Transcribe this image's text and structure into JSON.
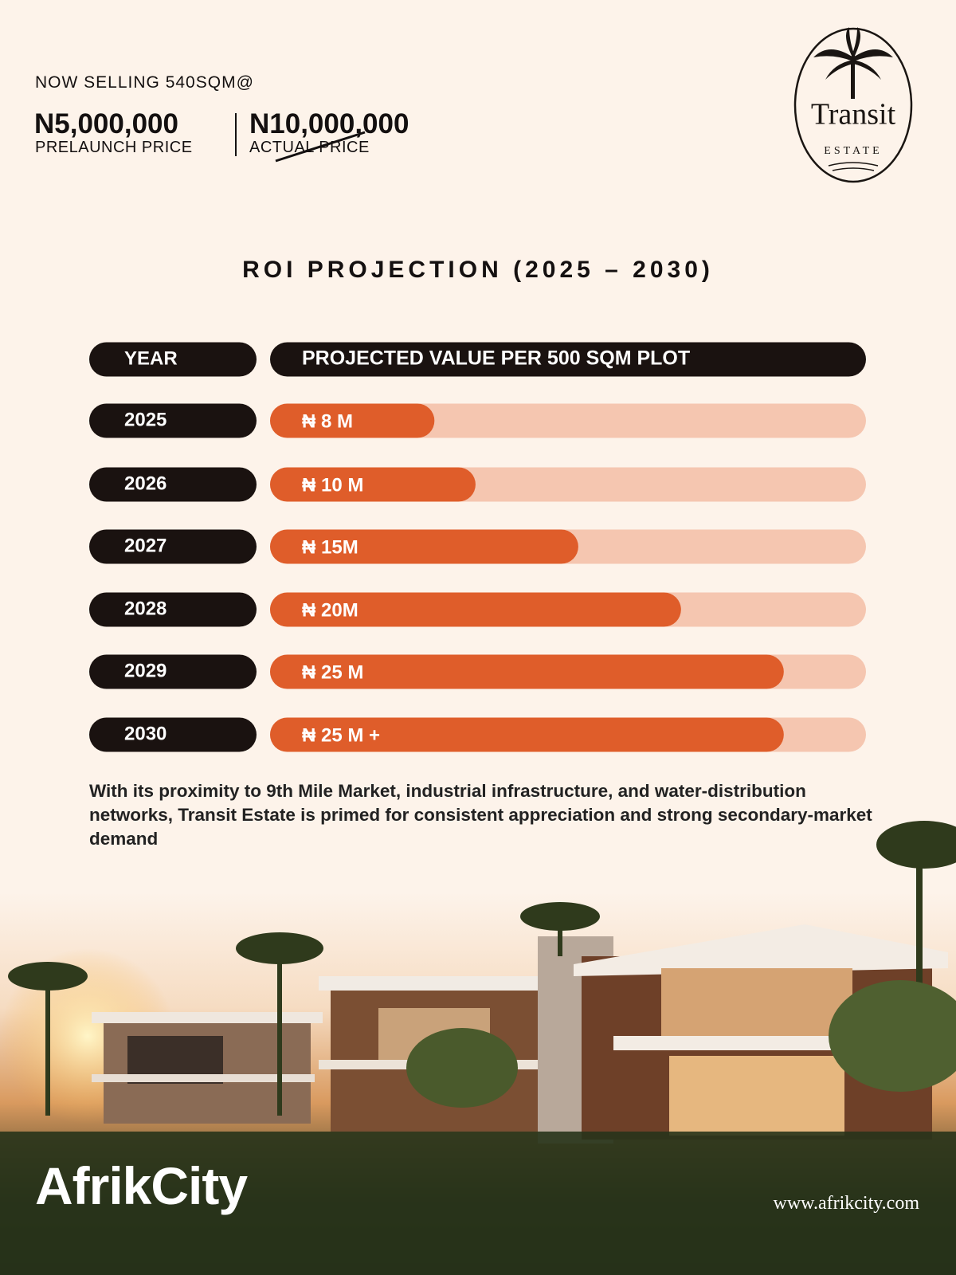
{
  "header": {
    "eyebrow": "NOW SELLING 540SQM@",
    "price": "N5,000,000",
    "price_label": "PRELAUNCH PRICE",
    "old_price": "N10,000,000",
    "old_price_label": "ACTUAL PRICE"
  },
  "logo": {
    "name": "Transit",
    "sub": "ESTATE"
  },
  "chart_data": {
    "type": "bar",
    "orientation": "horizontal",
    "title": "ROI PROJECTION (2025 – 2030)",
    "category_header": "YEAR",
    "value_header": "PROJECTED VALUE PER 500 SQM PLOT",
    "categories": [
      "2025",
      "2026",
      "2027",
      "2028",
      "2029",
      "2030"
    ],
    "values": [
      8,
      10,
      15,
      20,
      25,
      25
    ],
    "value_labels": [
      "₦ 8 M",
      "₦ 10 M",
      "₦ 15M",
      "₦ 20M",
      "₦ 25 M",
      "₦ 25 M +"
    ],
    "xlim": [
      0,
      29
    ],
    "color": "#df5d2a",
    "track_color": "#f5c6b0"
  },
  "description": "With its proximity to 9th Mile Market, industrial infrastructure, and water-distribution networks, Transit Estate is primed for consistent appreciation and strong secondary-market demand",
  "footer": {
    "brand": "AfrikCity",
    "url": "www.afrikcity.com"
  }
}
